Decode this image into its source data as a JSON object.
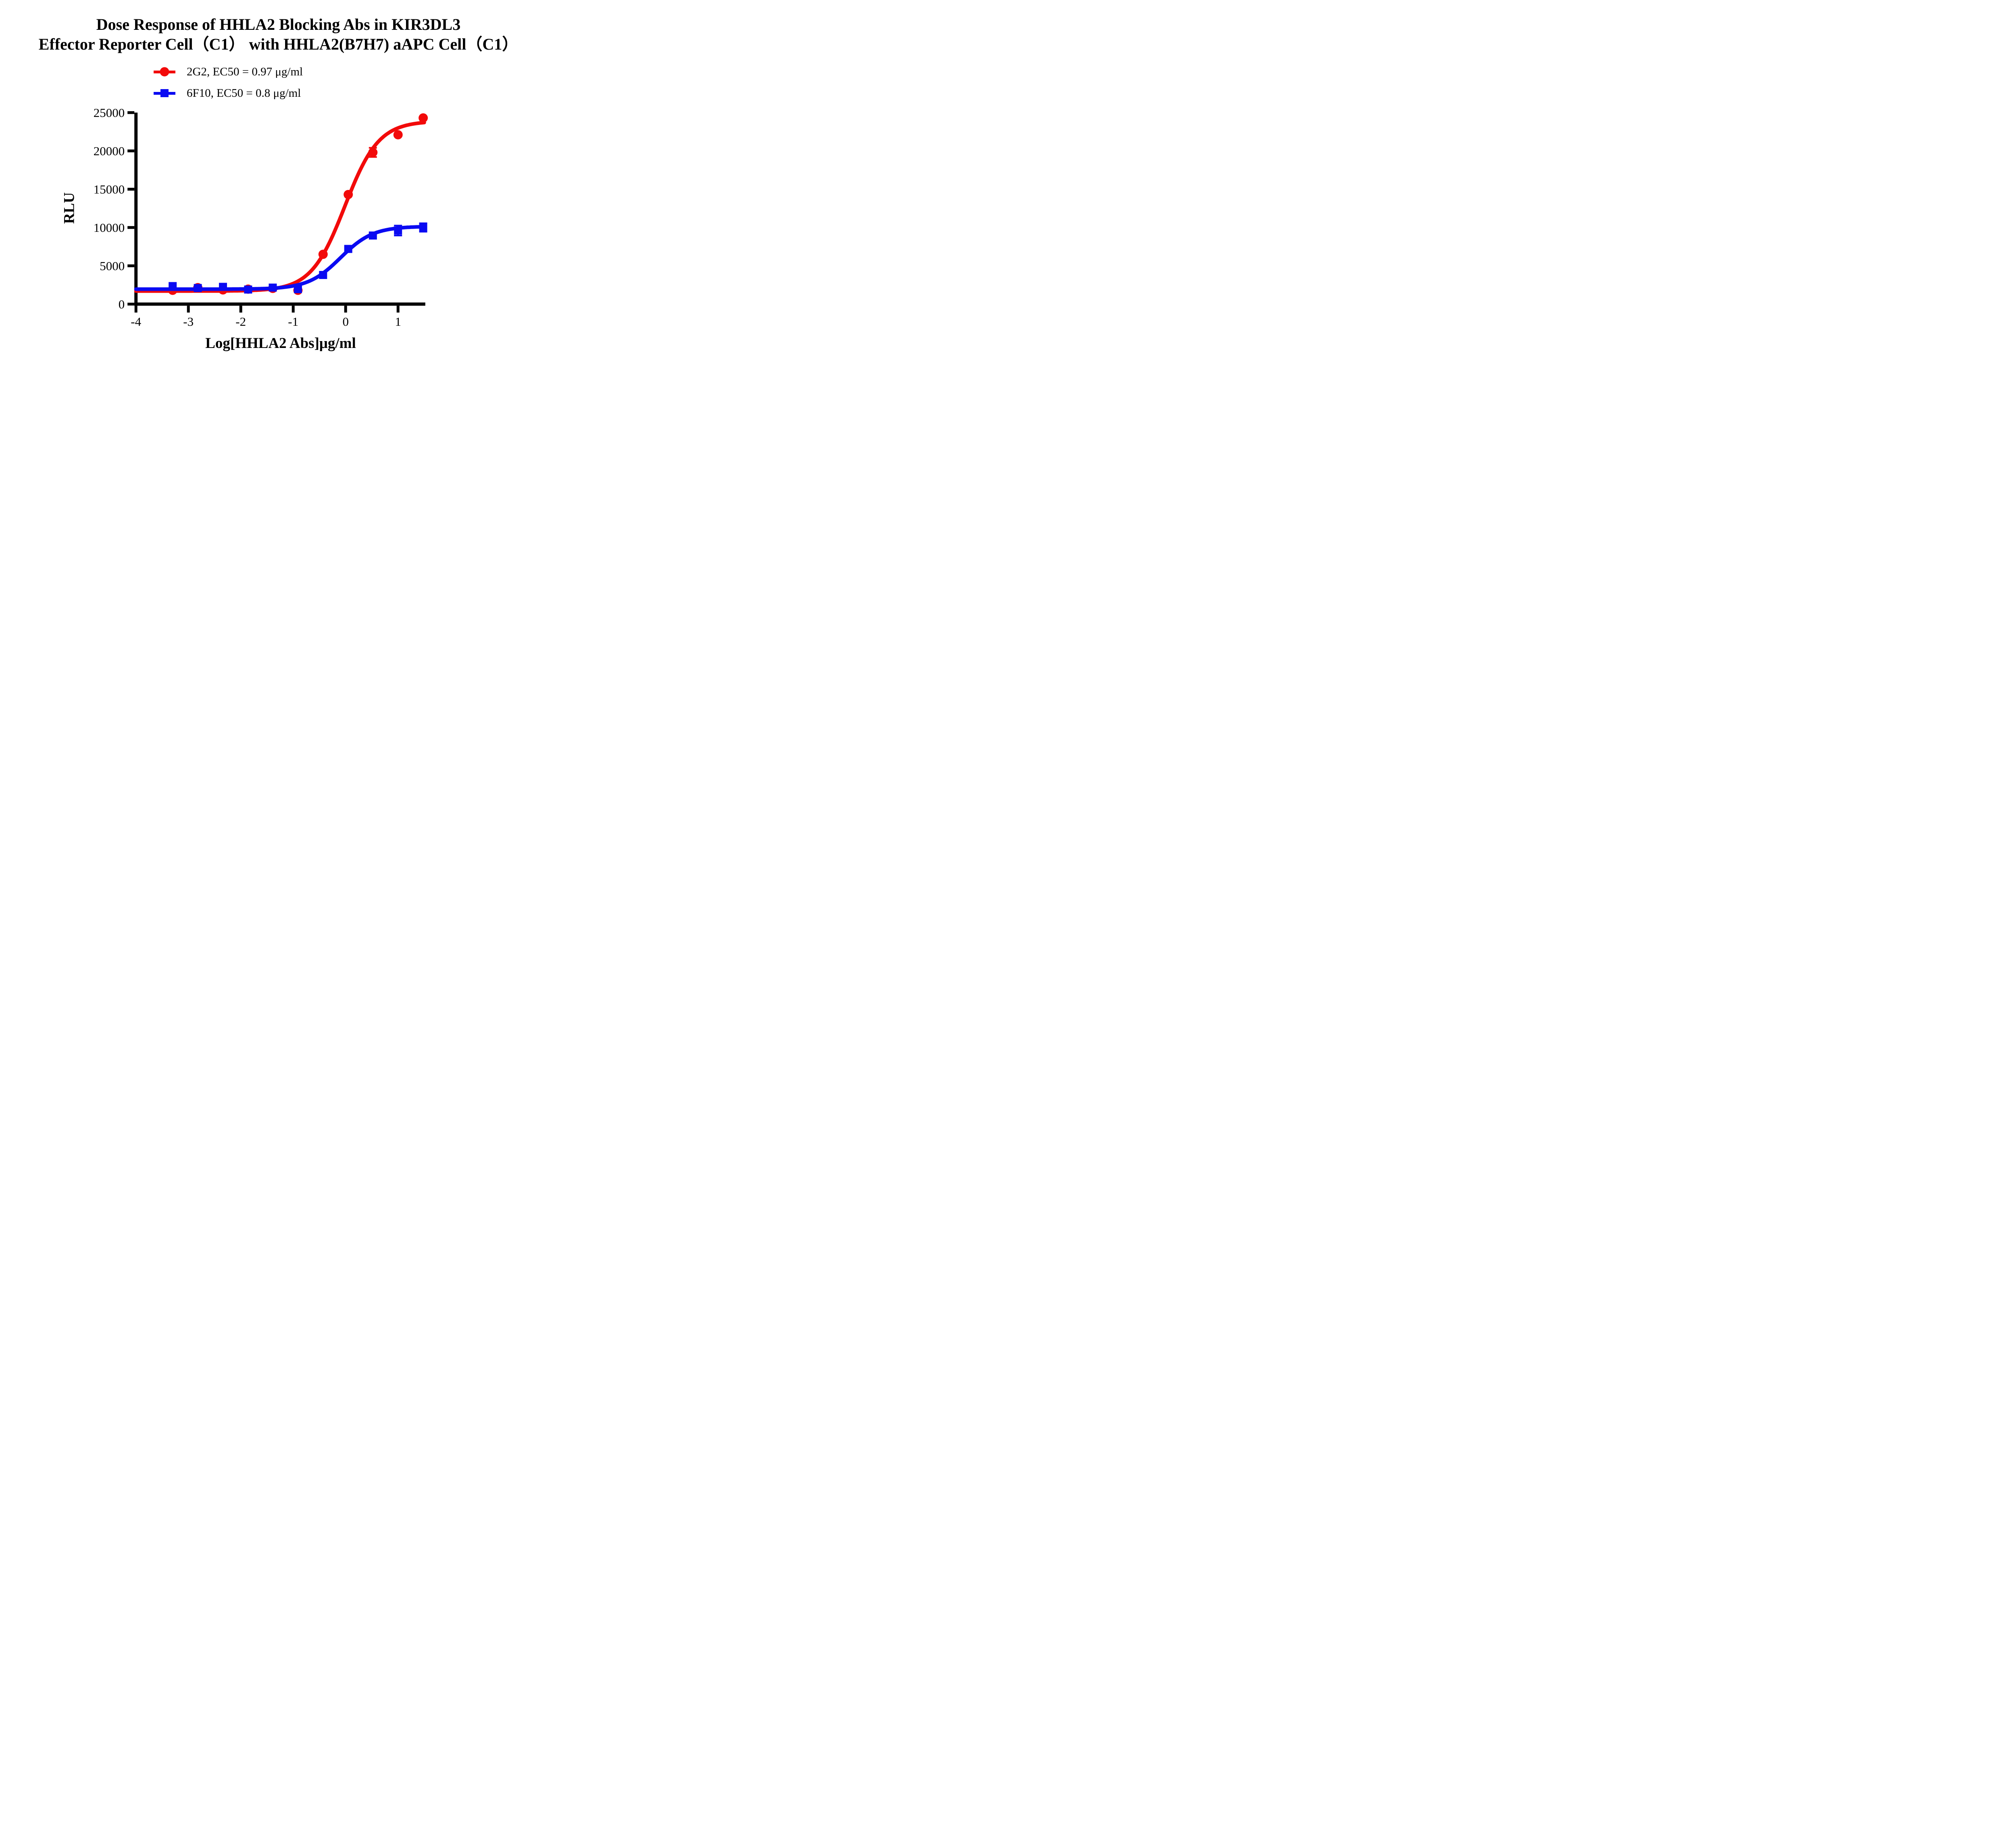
{
  "title": {
    "line1": "Dose Response of HHLA2 Blocking Abs in KIR3DL3",
    "line2": "Effector Reporter Cell（C1） with HHLA2(B7H7) aAPC Cell（C1）"
  },
  "axis": {
    "x_label": "Log[HHLA2 Abs]μg/ml",
    "y_label": "RLU"
  },
  "legend": {
    "items": [
      {
        "label": "2G2, EC50 = 0.97 μg/ml",
        "color": "#F20A0A",
        "marker": "circle"
      },
      {
        "label": "6F10, EC50 = 0.8 μg/ml",
        "color": "#0A0AF2",
        "marker": "square"
      }
    ]
  },
  "chart_data": {
    "type": "scatter",
    "title": "Dose Response of HHLA2 Blocking Abs in KIR3DL3 Effector Reporter Cell（C1） with HHLA2(B7H7) aAPC Cell（C1）",
    "xlabel": "Log[HHLA2 Abs]μg/ml",
    "ylabel": "RLU",
    "xlim": [
      -4,
      1.52
    ],
    "ylim": [
      0,
      25000
    ],
    "xticks": [
      -4,
      -3,
      -2,
      -1,
      0,
      1
    ],
    "yticks": [
      0,
      5000,
      10000,
      15000,
      20000,
      25000
    ],
    "grid": false,
    "legend_position": "top-center",
    "x": [
      -3.3,
      -2.82,
      -2.34,
      -1.86,
      -1.39,
      -0.91,
      -0.43,
      0.05,
      0.52,
      1.0,
      1.48
    ],
    "series": [
      {
        "name": "2G2",
        "ec50_ug_ml": 0.97,
        "color": "#F20A0A",
        "marker": "circle",
        "values": [
          1800,
          2150,
          1850,
          1950,
          2050,
          1800,
          6500,
          14300,
          19800,
          22100,
          24300
        ],
        "errors": [
          0,
          0,
          0,
          0,
          0,
          0,
          0,
          0,
          600,
          0,
          0
        ],
        "fit": {
          "bottom": 1700,
          "top": 23900,
          "logEC50": -0.013,
          "hill": 1.35
        }
      },
      {
        "name": "6F10",
        "ec50_ug_ml": 0.8,
        "color": "#0A0AF2",
        "marker": "square",
        "values": [
          2350,
          2100,
          2250,
          1900,
          2150,
          1950,
          3800,
          7200,
          8950,
          9600,
          10000
        ],
        "errors": [
          0,
          0,
          0,
          0,
          0,
          0,
          0,
          0,
          0,
          650,
          550
        ],
        "fit": {
          "bottom": 1950,
          "top": 10150,
          "logEC50": -0.097,
          "hill": 1.4
        }
      }
    ]
  }
}
